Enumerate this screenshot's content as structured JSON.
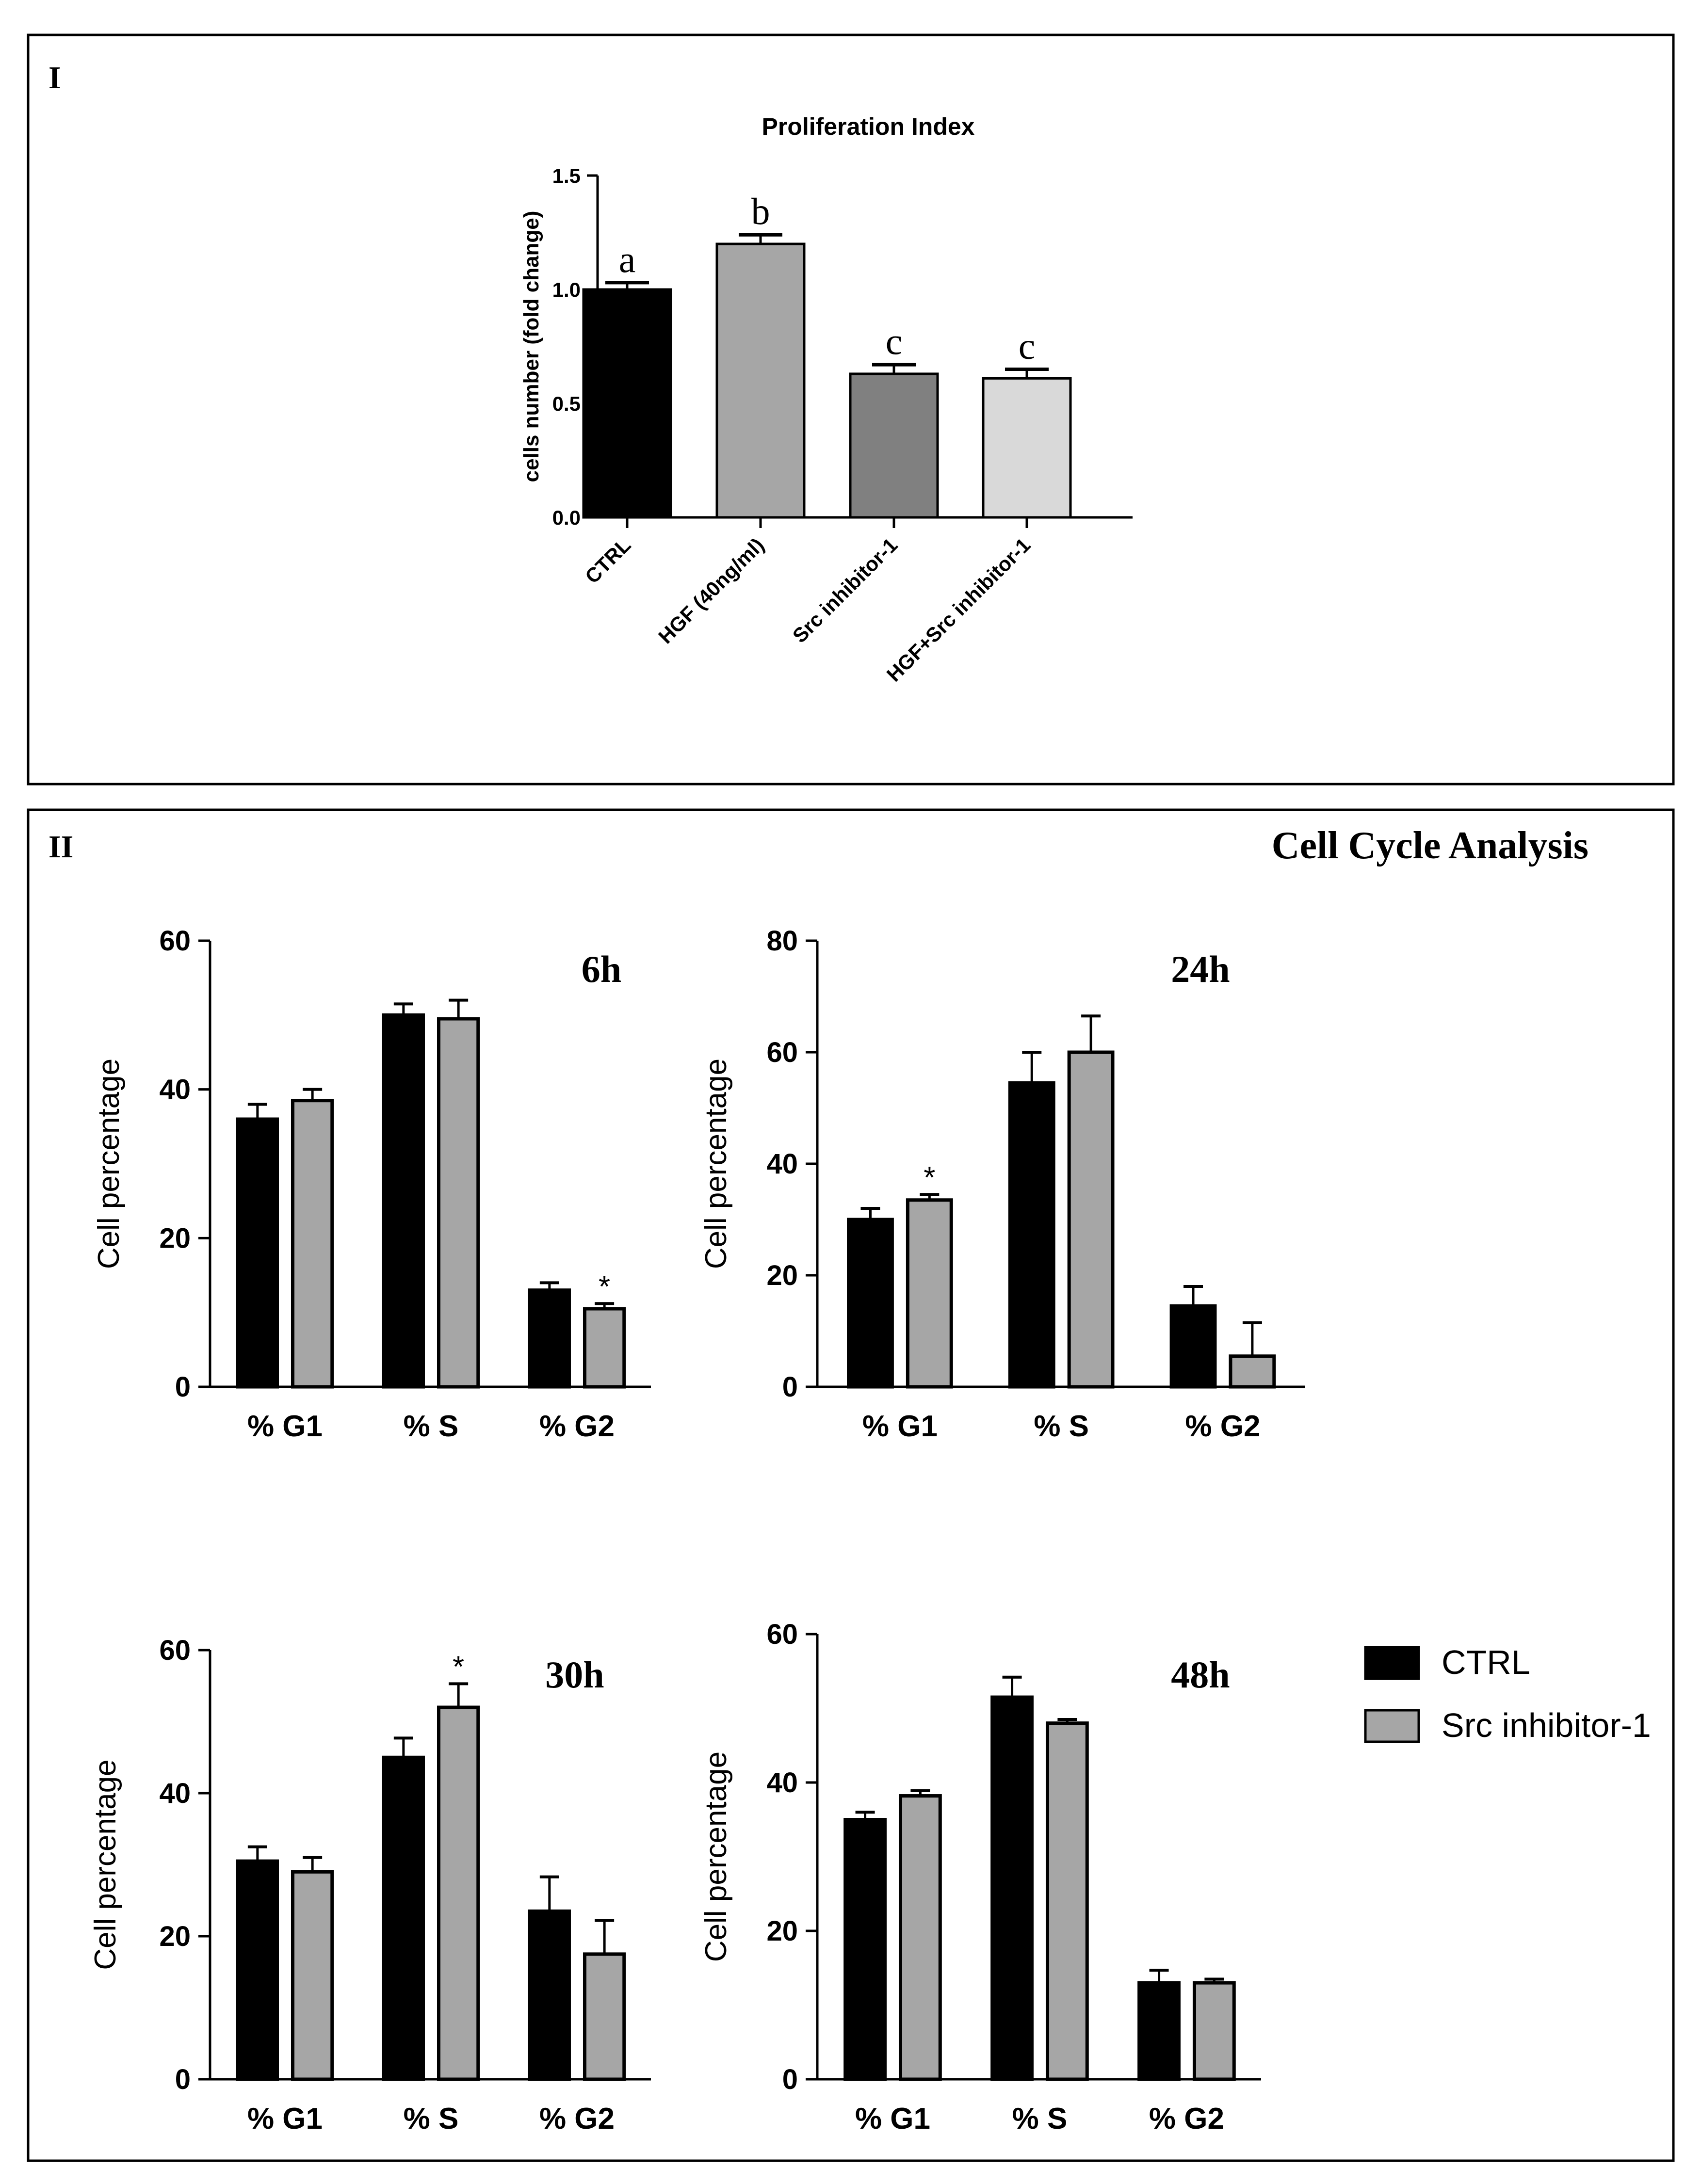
{
  "panel_I": {
    "label": "I"
  },
  "panel_II": {
    "label": "II",
    "title": "Cell Cycle Analysis"
  },
  "legend": {
    "items": [
      {
        "name": "CTRL",
        "color": "#000000"
      },
      {
        "name": "Src inhibitor-1",
        "color": "#a6a6a6"
      }
    ]
  },
  "chart_data": [
    {
      "id": "prolif",
      "type": "bar",
      "title": "Proliferation Index",
      "ylabel": "cells number (fold change)",
      "xlabel": "",
      "categories": [
        "CTRL",
        "HGF (40ng/ml)",
        "Src inhibitor-1",
        "HGF+Src inhibitor-1"
      ],
      "values": [
        1.0,
        1.2,
        0.63,
        0.61
      ],
      "errors": [
        0.03,
        0.04,
        0.04,
        0.04
      ],
      "letters": [
        "a",
        "b",
        "c",
        "c"
      ],
      "colors": [
        "#000000",
        "#a6a6a6",
        "#808080",
        "#d9d9d9"
      ],
      "ylim": [
        0,
        1.5
      ],
      "yticks": [
        "0.0",
        "0.5",
        "1.0",
        "1.5"
      ]
    },
    {
      "id": "h6",
      "type": "bar",
      "title": "6h",
      "ylabel": "Cell percentage",
      "categories": [
        "% G1",
        "% S",
        "% G2"
      ],
      "ylim": [
        0,
        60
      ],
      "yticks": [
        "0",
        "20",
        "40",
        "60"
      ],
      "series": [
        {
          "name": "CTRL",
          "values": [
            36,
            50,
            13
          ],
          "errors": [
            2,
            1.5,
            1
          ]
        },
        {
          "name": "Src inhibitor-1",
          "values": [
            38.5,
            49.5,
            10.5
          ],
          "errors": [
            1.5,
            2.5,
            0.7
          ]
        }
      ],
      "annotations": [
        {
          "category": "% G2",
          "series": "Src inhibitor-1",
          "text": "*"
        }
      ]
    },
    {
      "id": "h24",
      "type": "bar",
      "title": "24h",
      "ylabel": "Cell percentage",
      "categories": [
        "% G1",
        "% S",
        "% G2"
      ],
      "ylim": [
        0,
        80
      ],
      "yticks": [
        "0",
        "20",
        "40",
        "60",
        "80"
      ],
      "series": [
        {
          "name": "CTRL",
          "values": [
            30,
            54.5,
            14.5
          ],
          "errors": [
            2,
            5.5,
            3.5
          ]
        },
        {
          "name": "Src inhibitor-1",
          "values": [
            33.5,
            60,
            5.5
          ],
          "errors": [
            1,
            6.5,
            6
          ]
        }
      ],
      "annotations": [
        {
          "category": "% G1",
          "series": "Src inhibitor-1",
          "text": "*"
        }
      ]
    },
    {
      "id": "h30",
      "type": "bar",
      "title": "30h",
      "ylabel": "Cell percentage",
      "categories": [
        "% G1",
        "% S",
        "% G2"
      ],
      "ylim": [
        0,
        60
      ],
      "yticks": [
        "0",
        "20",
        "40",
        "60"
      ],
      "series": [
        {
          "name": "CTRL",
          "values": [
            30.5,
            45,
            23.5
          ],
          "errors": [
            2,
            2.7,
            4.8
          ]
        },
        {
          "name": "Src inhibitor-1",
          "values": [
            29,
            52,
            17.5
          ],
          "errors": [
            2,
            3.3,
            4.7
          ]
        }
      ],
      "annotations": [
        {
          "category": "% S",
          "series": "Src inhibitor-1",
          "text": "*"
        }
      ]
    },
    {
      "id": "h48",
      "type": "bar",
      "title": "48h",
      "ylabel": "Cell percentage",
      "categories": [
        "% G1",
        "% S",
        "% G2"
      ],
      "ylim": [
        0,
        60
      ],
      "yticks": [
        "0",
        "20",
        "40",
        "60"
      ],
      "series": [
        {
          "name": "CTRL",
          "values": [
            35,
            51.5,
            13
          ],
          "errors": [
            1,
            2.7,
            1.7
          ]
        },
        {
          "name": "Src inhibitor-1",
          "values": [
            38.2,
            48,
            13
          ],
          "errors": [
            0.7,
            0.5,
            0.5
          ]
        }
      ],
      "annotations": []
    }
  ]
}
